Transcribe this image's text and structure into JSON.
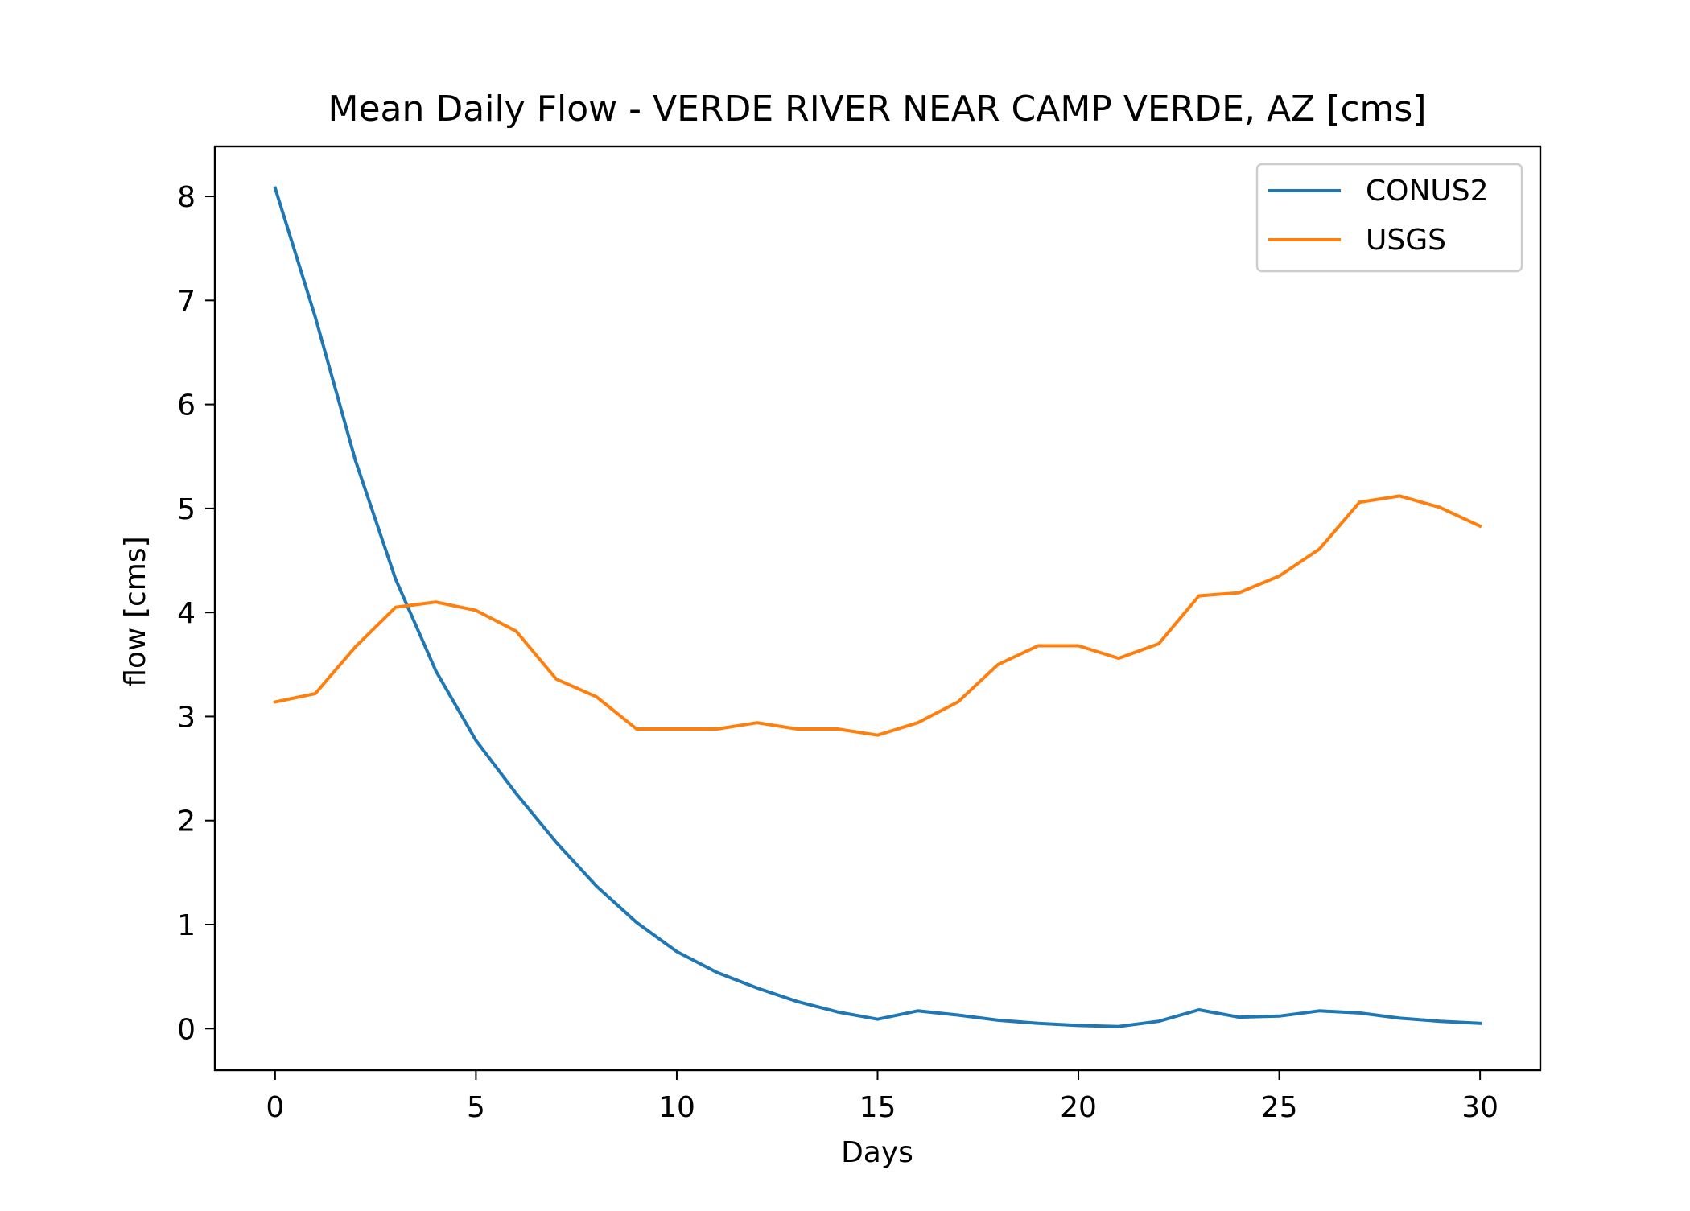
{
  "chart_data": {
    "type": "line",
    "title": "Mean Daily Flow - VERDE RIVER NEAR CAMP VERDE, AZ [cms]",
    "xlabel": "Days",
    "ylabel": "flow [cms]",
    "xlim": [
      -1.5,
      31.5
    ],
    "ylim": [
      -0.4,
      8.48
    ],
    "xticks": [
      0,
      5,
      10,
      15,
      20,
      25,
      30
    ],
    "yticks": [
      0,
      1,
      2,
      3,
      4,
      5,
      6,
      7,
      8
    ],
    "grid": false,
    "legend_position": "upper right",
    "x": [
      0,
      1,
      2,
      3,
      4,
      5,
      6,
      7,
      8,
      9,
      10,
      11,
      12,
      13,
      14,
      15,
      16,
      17,
      18,
      19,
      20,
      21,
      22,
      23,
      24,
      25,
      26,
      27,
      28,
      29,
      30
    ],
    "series": [
      {
        "name": "CONUS2",
        "color": "#1f77b4",
        "values": [
          8.08,
          6.84,
          5.46,
          4.32,
          3.44,
          2.77,
          2.26,
          1.79,
          1.37,
          1.02,
          0.74,
          0.54,
          0.39,
          0.26,
          0.16,
          0.09,
          0.17,
          0.13,
          0.08,
          0.05,
          0.03,
          0.02,
          0.07,
          0.18,
          0.11,
          0.12,
          0.17,
          0.15,
          0.1,
          0.07,
          0.05
        ]
      },
      {
        "name": "USGS",
        "color": "#ff7f0e",
        "values": [
          3.14,
          3.22,
          3.67,
          4.05,
          4.1,
          4.02,
          3.82,
          3.36,
          3.19,
          2.88,
          2.88,
          2.88,
          2.94,
          2.88,
          2.88,
          2.82,
          2.94,
          3.14,
          3.5,
          3.68,
          3.68,
          3.56,
          3.7,
          4.16,
          4.19,
          4.35,
          4.61,
          5.06,
          5.12,
          5.01,
          4.83
        ]
      }
    ]
  }
}
